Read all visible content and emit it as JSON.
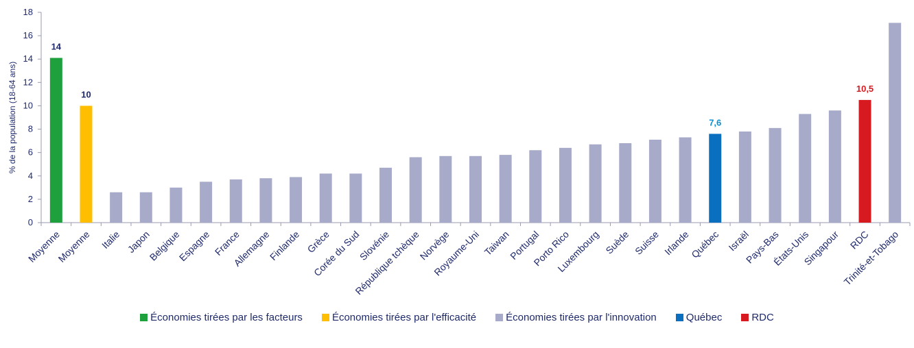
{
  "chart_data": {
    "type": "bar",
    "ylabel": "% de la population (18-64 ans)",
    "ylim": [
      0,
      18
    ],
    "yticks": [
      0,
      2,
      4,
      6,
      8,
      10,
      12,
      14,
      16,
      18
    ],
    "grid": false,
    "legend_position": "bottom",
    "categories": [
      "Moyenne",
      "Moyenne",
      "Italie",
      "Japon",
      "Belgique",
      "Espagne",
      "France",
      "Allemagne",
      "Finlande",
      "Grèce",
      "Corée du Sud",
      "Slovénie",
      "République tchèque",
      "Norvège",
      "Royaume-Uni",
      "Taiwan",
      "Portugal",
      "Porto Rico",
      "Luxembourg",
      "Suède",
      "Suisse",
      "Irlande",
      "Québec",
      "Israël",
      "Pays-Bas",
      "États-Unis",
      "Singapour",
      "RDC",
      "Trinité-et-Tobago"
    ],
    "values": [
      14.1,
      10.0,
      2.6,
      2.6,
      3.0,
      3.5,
      3.7,
      3.8,
      3.9,
      4.2,
      4.2,
      4.7,
      5.6,
      5.7,
      5.7,
      5.8,
      6.2,
      6.4,
      6.7,
      6.8,
      7.1,
      7.3,
      7.6,
      7.8,
      8.1,
      9.3,
      9.6,
      10.5,
      17.1
    ],
    "groups": [
      "facteurs",
      "efficacite",
      "innovation",
      "innovation",
      "innovation",
      "innovation",
      "innovation",
      "innovation",
      "innovation",
      "innovation",
      "innovation",
      "innovation",
      "innovation",
      "innovation",
      "innovation",
      "innovation",
      "innovation",
      "innovation",
      "innovation",
      "innovation",
      "innovation",
      "innovation",
      "quebec",
      "innovation",
      "innovation",
      "innovation",
      "innovation",
      "rdc",
      "innovation"
    ],
    "data_labels": [
      {
        "index": 0,
        "text": "14"
      },
      {
        "index": 1,
        "text": "10"
      },
      {
        "index": 22,
        "text": "7,6"
      },
      {
        "index": 27,
        "text": "10,5"
      }
    ],
    "legend": [
      {
        "key": "facteurs",
        "label": "Économies tirées par les facteurs",
        "color": "#1ea03c"
      },
      {
        "key": "efficacite",
        "label": "Économies tirées par l'efficacité",
        "color": "#ffbf00"
      },
      {
        "key": "innovation",
        "label": "Économies tirées par l'innovation",
        "color": "#a7aac9"
      },
      {
        "key": "quebec",
        "label": "Québec",
        "color": "#0b6fbf"
      },
      {
        "key": "rdc",
        "label": "RDC",
        "color": "#d71920"
      }
    ],
    "label_colors": {
      "facteurs": "#1f2a6b",
      "efficacite": "#1f2a6b",
      "quebec": "#0b8fd0",
      "rdc": "#d71920"
    }
  }
}
